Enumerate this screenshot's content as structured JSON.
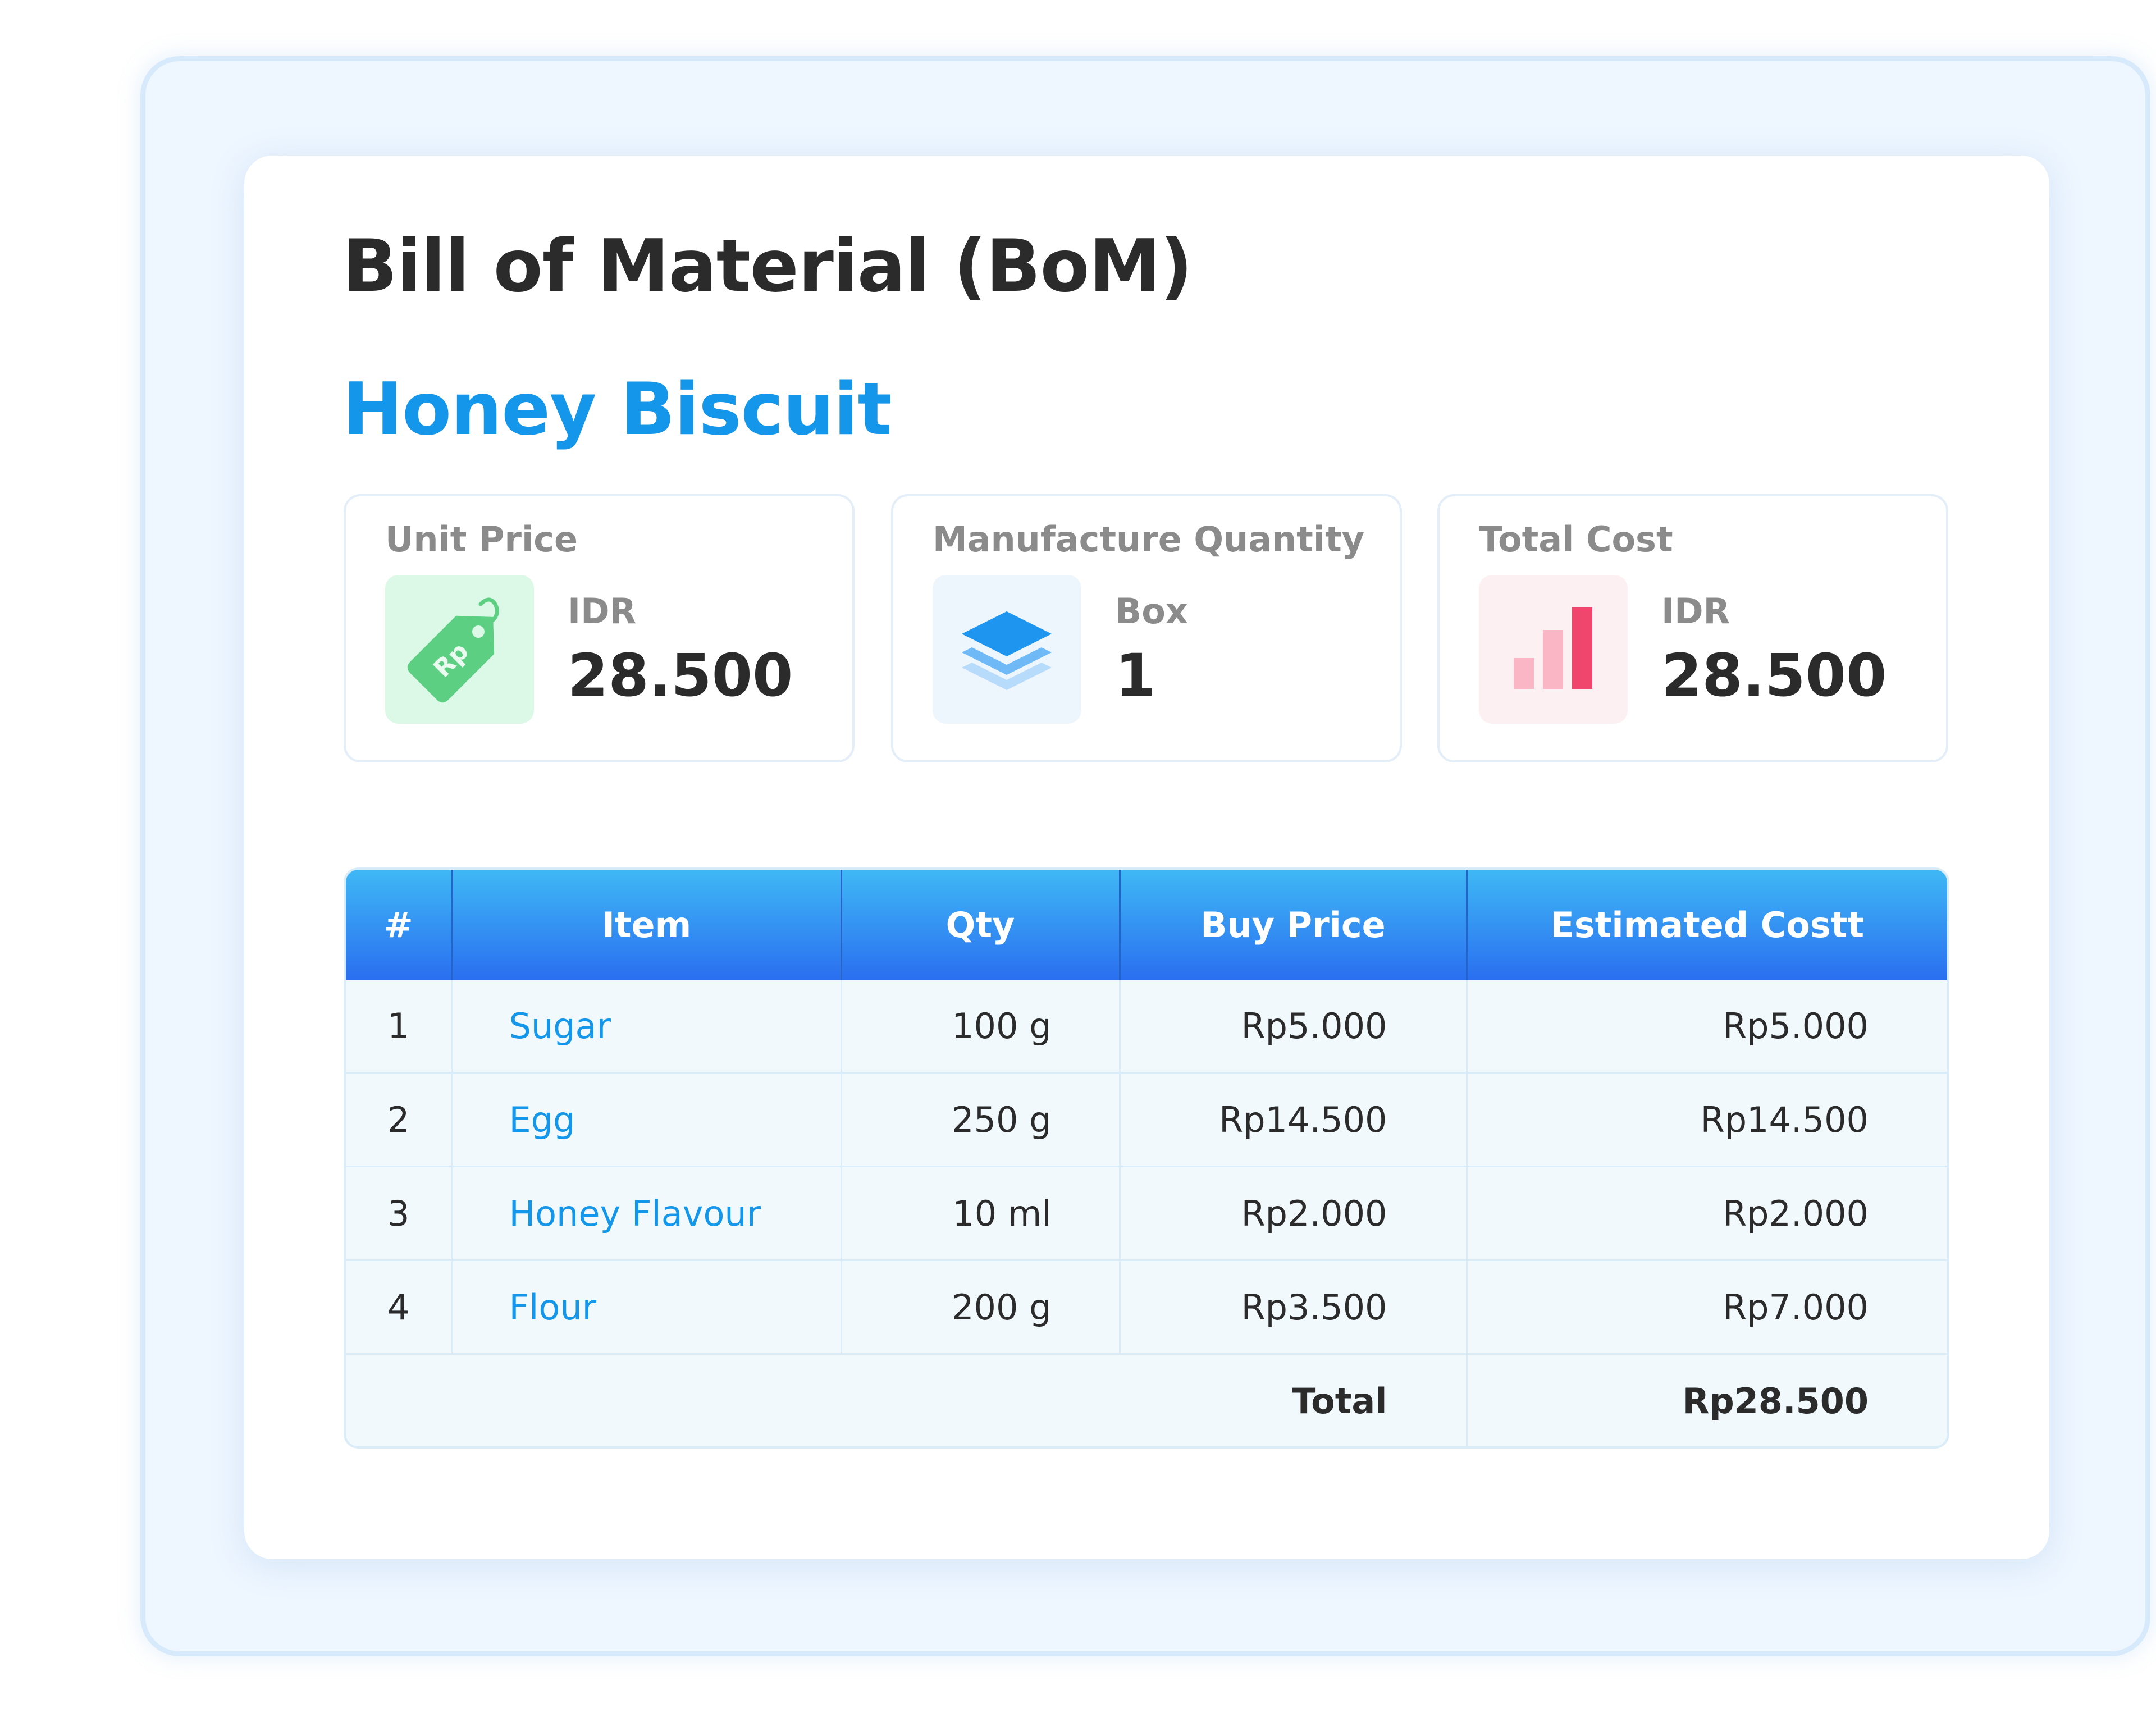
{
  "page": {
    "title": "Bill of Material (BoM)",
    "product_name": "Honey Biscuit"
  },
  "stats": [
    {
      "label": "Unit Price",
      "unit": "IDR",
      "value": "28.500",
      "icon": "price-tag-icon",
      "icon_text": "Rp",
      "accent": "#5ccf83",
      "bg": "#dcf8e6"
    },
    {
      "label": "Manufacture Quantity",
      "unit": "Box",
      "value": "1",
      "icon": "layers-icon",
      "accent": "#1e96f0",
      "bg": "#eef6fd"
    },
    {
      "label": "Total Cost",
      "unit": "IDR",
      "value": "28.500",
      "icon": "bar-chart-icon",
      "accent": "#f0466e",
      "bg": "#fdf0f3"
    }
  ],
  "table": {
    "headers": [
      "#",
      "Item",
      "Qty",
      "Buy Price",
      "Estimated Costt"
    ],
    "rows": [
      {
        "num": "1",
        "item": "Sugar",
        "qty": "100 g",
        "buy_price": "Rp5.000",
        "estimated_cost": "Rp5.000"
      },
      {
        "num": "2",
        "item": "Egg",
        "qty": "250 g",
        "buy_price": "Rp14.500",
        "estimated_cost": "Rp14.500"
      },
      {
        "num": "3",
        "item": "Honey Flavour",
        "qty": "10 ml",
        "buy_price": "Rp2.000",
        "estimated_cost": "Rp2.000"
      },
      {
        "num": "4",
        "item": "Flour",
        "qty": "200 g",
        "buy_price": "Rp3.500",
        "estimated_cost": "Rp7.000"
      }
    ],
    "total_label": "Total",
    "total_value": "Rp28.500"
  },
  "colors": {
    "accent_blue": "#1497ea",
    "header_gradient_top": "#3fb8f5",
    "header_gradient_bottom": "#2a6ff0",
    "text_dark": "#2b2b2b",
    "text_muted": "#8b8b8b"
  }
}
